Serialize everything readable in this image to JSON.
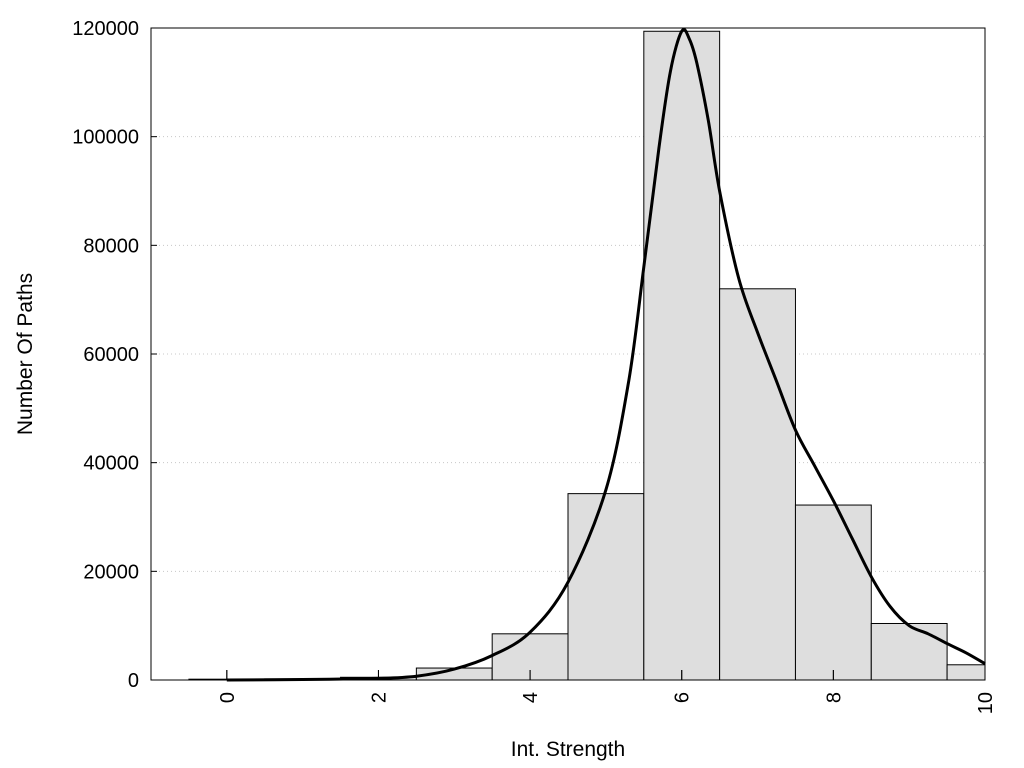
{
  "chart_data": {
    "type": "bar",
    "title": "",
    "xlabel": "Int. Strength",
    "ylabel": "Number Of Paths",
    "xlim": [
      -1,
      10
    ],
    "ylim": [
      0,
      120000
    ],
    "x_ticks": [
      "0",
      "2",
      "4",
      "6",
      "8",
      "10"
    ],
    "y_ticks": [
      "0",
      "20000",
      "40000",
      "60000",
      "80000",
      "100000",
      "120000"
    ],
    "grid": "horizontal-dotted",
    "bar_fill": "#dedede",
    "bar_stroke": "#000000",
    "line_color": "#000000",
    "bins": [
      {
        "x": 0,
        "value": 150
      },
      {
        "x": 1,
        "value": 200
      },
      {
        "x": 2,
        "value": 500
      },
      {
        "x": 3,
        "value": 2200
      },
      {
        "x": 4,
        "value": 8500
      },
      {
        "x": 5,
        "value": 34300
      },
      {
        "x": 6,
        "value": 119400
      },
      {
        "x": 7,
        "value": 72000
      },
      {
        "x": 8,
        "value": 32200
      },
      {
        "x": 9,
        "value": 10400
      },
      {
        "x": 10,
        "value": 2800
      }
    ],
    "curve": [
      [
        0,
        0
      ],
      [
        1,
        100
      ],
      [
        2,
        300
      ],
      [
        2.5,
        700
      ],
      [
        3,
        2000
      ],
      [
        3.5,
        4500
      ],
      [
        4,
        8800
      ],
      [
        4.5,
        18000
      ],
      [
        5,
        35000
      ],
      [
        5.3,
        55000
      ],
      [
        5.5,
        76000
      ],
      [
        5.7,
        98000
      ],
      [
        5.85,
        112000
      ],
      [
        6,
        119400
      ],
      [
        6.1,
        118000
      ],
      [
        6.2,
        113500
      ],
      [
        6.35,
        103000
      ],
      [
        6.5,
        90000
      ],
      [
        6.75,
        74000
      ],
      [
        7,
        64000
      ],
      [
        7.25,
        55000
      ],
      [
        7.5,
        46000
      ],
      [
        7.75,
        39500
      ],
      [
        8,
        33000
      ],
      [
        8.25,
        26000
      ],
      [
        8.5,
        19000
      ],
      [
        8.75,
        13500
      ],
      [
        9,
        10000
      ],
      [
        9.25,
        8500
      ],
      [
        9.5,
        6700
      ],
      [
        9.75,
        5000
      ],
      [
        10,
        3000
      ]
    ]
  }
}
